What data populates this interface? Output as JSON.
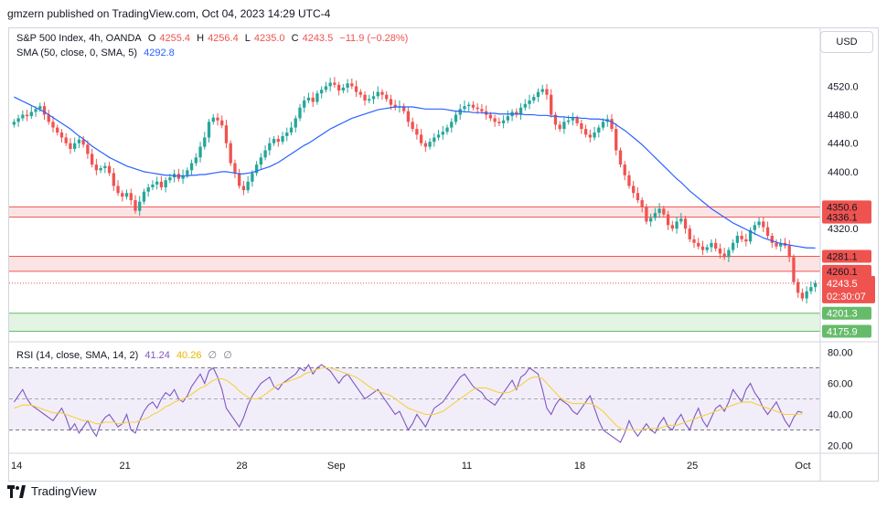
{
  "header": {
    "published": "gmzern published on TradingView.com, Oct 04, 2023 14:29 UTC-4"
  },
  "legend": {
    "symbol": "S&P 500 Index, 4h, OANDA",
    "open_label": "O",
    "open": "4255.4",
    "high_label": "H",
    "high": "4256.4",
    "low_label": "L",
    "low": "4235.0",
    "close_label": "C",
    "close": "4243.5",
    "change": "−11.9 (−0.28%)",
    "sma_label": "SMA (50, close, 0, SMA, 5)",
    "sma_value": "4292.8"
  },
  "rsi_legend": {
    "label": "RSI (14, close, SMA, 14, 2)",
    "rsi_value": "41.24",
    "rsi_sma_value": "40.26",
    "extra1": "∅",
    "extra2": "∅"
  },
  "currency_button": "USD",
  "footer": {
    "brand": "TradingView"
  },
  "colors": {
    "up": "#26a69a",
    "down": "#ef5350",
    "sma": "#2962ff",
    "rsi": "#7e57c2",
    "rsi_sma": "#f5d142",
    "resistance_fill": "#fde4e4",
    "resistance_line": "#ef5350",
    "support_fill": "#e3f4e3",
    "support_line": "#66bb6a"
  },
  "chart_data": {
    "type": "candlestick",
    "price_axis": {
      "ticks": [
        "4520.0",
        "4480.0",
        "4440.0",
        "4400.0",
        "4320.0"
      ],
      "tick_values": [
        4520,
        4480,
        4440,
        4400,
        4320
      ],
      "range": [
        4165,
        4550
      ]
    },
    "time_axis": {
      "labels": [
        "14",
        "21",
        "28",
        "Sep",
        "11",
        "18",
        "25",
        "Oct"
      ],
      "label_bar_index": [
        0,
        26,
        53,
        74,
        105,
        131,
        157,
        182
      ]
    },
    "zones": [
      {
        "type": "resistance",
        "top": 4350.6,
        "bottom": 4336.1,
        "top_label": "4350.6",
        "bottom_label": "4336.1"
      },
      {
        "type": "resistance",
        "top": 4281.1,
        "bottom": 4260.1,
        "top_label": "4281.1",
        "bottom_label": "4260.1"
      },
      {
        "type": "support",
        "top": 4201.3,
        "bottom": 4175.9,
        "top_label": "4201.3",
        "bottom_label": "4175.9"
      }
    ],
    "last_price": {
      "value": 4243.5,
      "label": "4243.5",
      "countdown": "02:30:07"
    },
    "sma_current": 4292.8,
    "closes": [
      4470,
      4475,
      4480,
      4478,
      4484,
      4488,
      4492,
      4480,
      4470,
      4462,
      4455,
      4448,
      4440,
      4432,
      4440,
      4445,
      4438,
      4425,
      4410,
      4402,
      4405,
      4408,
      4398,
      4380,
      4370,
      4365,
      4370,
      4360,
      4345,
      4358,
      4372,
      4378,
      4382,
      4386,
      4378,
      4388,
      4392,
      4397,
      4390,
      4395,
      4402,
      4412,
      4420,
      4435,
      4448,
      4470,
      4476,
      4472,
      4465,
      4440,
      4412,
      4398,
      4380,
      4374,
      4386,
      4398,
      4410,
      4420,
      4430,
      4440,
      4446,
      4442,
      4450,
      4455,
      4462,
      4475,
      4490,
      4500,
      4504,
      4498,
      4510,
      4515,
      4520,
      4525,
      4522,
      4514,
      4518,
      4524,
      4520,
      4512,
      4508,
      4500,
      4502,
      4506,
      4512,
      4508,
      4502,
      4494,
      4490,
      4492,
      4485,
      4470,
      4460,
      4452,
      4440,
      4435,
      4442,
      4448,
      4452,
      4456,
      4462,
      4470,
      4480,
      4488,
      4492,
      4494,
      4490,
      4488,
      4485,
      4480,
      4475,
      4470,
      4468,
      4472,
      4478,
      4484,
      4480,
      4490,
      4495,
      4500,
      4505,
      4512,
      4516,
      4508,
      4480,
      4466,
      4460,
      4470,
      4472,
      4475,
      4468,
      4460,
      4452,
      4448,
      4455,
      4462,
      4470,
      4474,
      4460,
      4430,
      4410,
      4395,
      4380,
      4370,
      4360,
      4350,
      4330,
      4335,
      4342,
      4348,
      4340,
      4325,
      4320,
      4330,
      4334,
      4320,
      4305,
      4300,
      4295,
      4290,
      4294,
      4300,
      4292,
      4285,
      4280,
      4290,
      4300,
      4310,
      4305,
      4302,
      4318,
      4325,
      4330,
      4322,
      4310,
      4300,
      4295,
      4300,
      4296,
      4280,
      4245,
      4230,
      4222,
      4232,
      4238,
      4243.5
    ],
    "sma": [
      4505,
      4502,
      4499,
      4496,
      4493,
      4490,
      4487,
      4484,
      4480,
      4476,
      4472,
      4468,
      4464,
      4460,
      4455,
      4450,
      4446,
      4441,
      4436,
      4432,
      4428,
      4424,
      4420,
      4417,
      4414,
      4411,
      4408,
      4406,
      4404,
      4402,
      4400,
      4399,
      4398,
      4397,
      4396,
      4395,
      4395,
      4394,
      4394,
      4394,
      4394,
      4395,
      4395,
      4396,
      4396,
      4397,
      4398,
      4399,
      4400,
      4400,
      4399,
      4398,
      4397,
      4397,
      4398,
      4399,
      4401,
      4403,
      4405,
      4407,
      4410,
      4413,
      4417,
      4421,
      4425,
      4429,
      4433,
      4437,
      4440,
      4444,
      4448,
      4452,
      4456,
      4460,
      4463,
      4466,
      4469,
      4472,
      4475,
      4477,
      4479,
      4481,
      4483,
      4485,
      4487,
      4488,
      4489,
      4490,
      4491,
      4491,
      4491,
      4491,
      4491,
      4490,
      4489,
      4488,
      4488,
      4488,
      4488,
      4488,
      4487,
      4486,
      4485,
      4485,
      4484,
      4484,
      4483,
      4483,
      4483,
      4482,
      4482,
      4482,
      4481,
      4481,
      4481,
      4481,
      4481,
      4481,
      4480,
      4480,
      4480,
      4479,
      4479,
      4479,
      4478,
      4478,
      4477,
      4477,
      4476,
      4476,
      4476,
      4475,
      4475,
      4474,
      4474,
      4474,
      4473,
      4472,
      4470,
      4466,
      4462,
      4458,
      4453,
      4448,
      4443,
      4438,
      4432,
      4426,
      4420,
      4414,
      4408,
      4402,
      4396,
      4390,
      4385,
      4379,
      4373,
      4368,
      4363,
      4358,
      4353,
      4348,
      4344,
      4340,
      4336,
      4332,
      4328,
      4325,
      4322,
      4319,
      4316,
      4313,
      4310,
      4307,
      4305,
      4303,
      4301,
      4299,
      4298,
      4297,
      4296,
      4295,
      4294,
      4293,
      4293,
      4292.8
    ],
    "rsi_axis": {
      "ticks": [
        "80.00",
        "60.00",
        "40.00",
        "20.00"
      ],
      "tick_values": [
        80,
        60,
        40,
        20
      ],
      "range": [
        15,
        85
      ],
      "upper_band": 70,
      "lower_band": 30
    },
    "rsi": [
      48,
      52,
      56,
      50,
      46,
      44,
      42,
      40,
      38,
      36,
      40,
      44,
      38,
      30,
      34,
      28,
      32,
      36,
      30,
      26,
      34,
      38,
      40,
      36,
      32,
      34,
      40,
      30,
      28,
      36,
      42,
      46,
      48,
      44,
      50,
      54,
      52,
      56,
      50,
      48,
      52,
      58,
      62,
      66,
      60,
      68,
      70,
      64,
      56,
      44,
      40,
      36,
      32,
      38,
      46,
      52,
      56,
      60,
      62,
      64,
      58,
      56,
      60,
      62,
      64,
      66,
      70,
      68,
      72,
      66,
      70,
      72,
      70,
      68,
      64,
      60,
      64,
      66,
      62,
      58,
      54,
      50,
      52,
      54,
      56,
      52,
      48,
      44,
      40,
      42,
      36,
      30,
      34,
      40,
      36,
      32,
      38,
      44,
      46,
      48,
      52,
      56,
      60,
      64,
      66,
      62,
      58,
      56,
      54,
      50,
      48,
      46,
      50,
      54,
      58,
      62,
      56,
      64,
      66,
      70,
      68,
      66,
      56,
      44,
      40,
      46,
      50,
      48,
      46,
      42,
      40,
      44,
      48,
      52,
      44,
      36,
      30,
      28,
      26,
      24,
      22,
      28,
      36,
      30,
      26,
      30,
      34,
      30,
      28,
      34,
      38,
      32,
      30,
      36,
      40,
      34,
      30,
      38,
      44,
      36,
      32,
      38,
      44,
      46,
      42,
      48,
      56,
      52,
      48,
      56,
      60,
      54,
      50,
      44,
      40,
      44,
      48,
      42,
      36,
      32,
      38,
      42,
      41.24
    ],
    "rsi_sma": [
      44,
      45,
      46,
      46,
      46,
      45,
      44,
      43,
      42,
      41,
      41,
      41,
      40,
      39,
      38,
      37,
      36,
      36,
      35,
      34,
      34,
      35,
      35,
      35,
      34,
      34,
      35,
      35,
      35,
      36,
      37,
      38,
      40,
      41,
      43,
      45,
      46,
      48,
      49,
      50,
      51,
      53,
      55,
      57,
      58,
      60,
      62,
      63,
      63,
      62,
      60,
      58,
      55,
      53,
      51,
      50,
      50,
      51,
      53,
      55,
      57,
      59,
      60,
      61,
      62,
      63,
      64,
      66,
      67,
      68,
      69,
      70,
      70,
      70,
      69,
      68,
      67,
      66,
      65,
      64,
      62,
      60,
      58,
      56,
      55,
      54,
      53,
      52,
      50,
      48,
      46,
      44,
      43,
      42,
      41,
      40,
      40,
      40,
      41,
      42,
      44,
      46,
      48,
      50,
      52,
      54,
      56,
      57,
      57,
      57,
      56,
      55,
      54,
      54,
      54,
      55,
      57,
      59,
      61,
      63,
      64,
      64,
      63,
      60,
      57,
      54,
      51,
      49,
      48,
      47,
      47,
      47,
      47,
      47,
      46,
      44,
      42,
      39,
      36,
      33,
      31,
      30,
      30,
      30,
      30,
      30,
      31,
      31,
      31,
      31,
      32,
      33,
      33,
      33,
      34,
      35,
      36,
      37,
      38,
      39,
      40,
      41,
      42,
      43,
      44,
      45,
      46,
      47,
      48,
      48,
      48,
      47,
      46,
      45,
      44,
      43,
      42,
      41,
      40,
      40,
      40,
      40,
      40.26
    ]
  }
}
